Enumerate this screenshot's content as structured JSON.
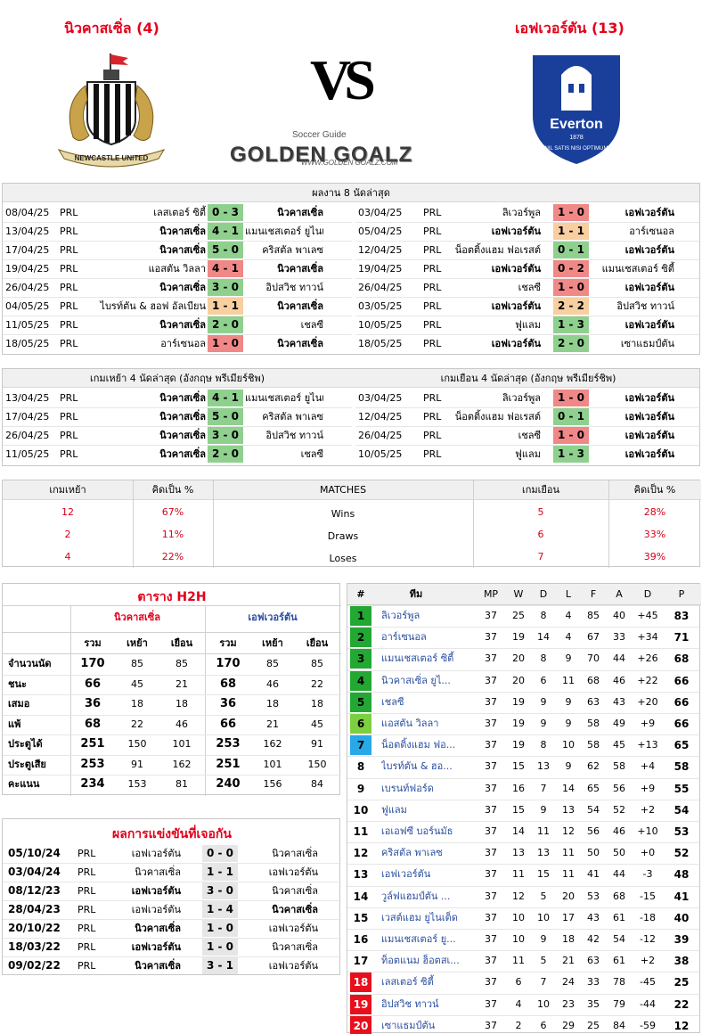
{
  "header": {
    "home_title": "นิวคาสเซิ่ล (4)",
    "away_title": "เอฟเวอร์ตัน (13)",
    "vs_text": "VS",
    "brand_small": "Soccer Guide",
    "brand_main": "GOLDEN GOALZ",
    "brand_url": "WWW.GOLDEN GOALZ.COM",
    "home_crest_text": "NEWCASTLE UNITED",
    "away_crest_name": "Everton",
    "away_crest_year": "1878",
    "away_crest_motto": "NIL SATIS NISI OPTIMUM"
  },
  "last8": {
    "title": "ผลงาน 8 นัดล่าสุด",
    "home": [
      {
        "date": "08/04/25",
        "lg": "PRL",
        "h": "เลสเตอร์ ซิตี้",
        "s": "0 - 3",
        "a": "นิวคาสเซิ่ล",
        "r": "w",
        "hb": false,
        "ab": true
      },
      {
        "date": "13/04/25",
        "lg": "PRL",
        "h": "นิวคาสเซิ่ล",
        "s": "4 - 1",
        "a": "แมนเชสเตอร์ ยูไนเต็ด",
        "r": "w",
        "hb": true,
        "ab": false
      },
      {
        "date": "17/04/25",
        "lg": "PRL",
        "h": "นิวคาสเซิ่ล",
        "s": "5 - 0",
        "a": "คริสตัล พาเลซ",
        "r": "w",
        "hb": true,
        "ab": false
      },
      {
        "date": "19/04/25",
        "lg": "PRL",
        "h": "แอสตัน วิลลา",
        "s": "4 - 1",
        "a": "นิวคาสเซิ่ล",
        "r": "l",
        "hb": false,
        "ab": true
      },
      {
        "date": "26/04/25",
        "lg": "PRL",
        "h": "นิวคาสเซิ่ล",
        "s": "3 - 0",
        "a": "อิปสวิช ทาวน์",
        "r": "w",
        "hb": true,
        "ab": false
      },
      {
        "date": "04/05/25",
        "lg": "PRL",
        "h": "ไบรท์ตัน & ฮอฟ อัลเบียน",
        "s": "1 - 1",
        "a": "นิวคาสเซิ่ล",
        "r": "d",
        "hb": false,
        "ab": true
      },
      {
        "date": "11/05/25",
        "lg": "PRL",
        "h": "นิวคาสเซิ่ล",
        "s": "2 - 0",
        "a": "เชลซี",
        "r": "w",
        "hb": true,
        "ab": false
      },
      {
        "date": "18/05/25",
        "lg": "PRL",
        "h": "อาร์เซนอล",
        "s": "1 - 0",
        "a": "นิวคาสเซิ่ล",
        "r": "l",
        "hb": false,
        "ab": true
      }
    ],
    "away": [
      {
        "date": "03/04/25",
        "lg": "PRL",
        "h": "ลิเวอร์พูล",
        "s": "1 - 0",
        "a": "เอฟเวอร์ตัน",
        "r": "l",
        "hb": false,
        "ab": true
      },
      {
        "date": "05/04/25",
        "lg": "PRL",
        "h": "เอฟเวอร์ตัน",
        "s": "1 - 1",
        "a": "อาร์เซนอล",
        "r": "d",
        "hb": true,
        "ab": false
      },
      {
        "date": "12/04/25",
        "lg": "PRL",
        "h": "น็อตติ้งแฮม ฟอเรสต์",
        "s": "0 - 1",
        "a": "เอฟเวอร์ตัน",
        "r": "w",
        "hb": false,
        "ab": true
      },
      {
        "date": "19/04/25",
        "lg": "PRL",
        "h": "เอฟเวอร์ตัน",
        "s": "0 - 2",
        "a": "แมนเชสเตอร์ ซิตี้",
        "r": "l",
        "hb": true,
        "ab": false
      },
      {
        "date": "26/04/25",
        "lg": "PRL",
        "h": "เชลซี",
        "s": "1 - 0",
        "a": "เอฟเวอร์ตัน",
        "r": "l",
        "hb": false,
        "ab": true
      },
      {
        "date": "03/05/25",
        "lg": "PRL",
        "h": "เอฟเวอร์ตัน",
        "s": "2 - 2",
        "a": "อิปสวิช ทาวน์",
        "r": "d",
        "hb": true,
        "ab": false
      },
      {
        "date": "10/05/25",
        "lg": "PRL",
        "h": "ฟูแลม",
        "s": "1 - 3",
        "a": "เอฟเวอร์ตัน",
        "r": "w",
        "hb": false,
        "ab": true
      },
      {
        "date": "18/05/25",
        "lg": "PRL",
        "h": "เอฟเวอร์ตัน",
        "s": "2 - 0",
        "a": "เซาแธมป์ตัน",
        "r": "w",
        "hb": true,
        "ab": false
      }
    ]
  },
  "last4": {
    "home_title": "เกมเหย้า 4 นัดล่าสุด (อังกฤษ พรีเมียร์ชิพ)",
    "away_title": "เกมเยือน 4 นัดล่าสุด (อังกฤษ พรีเมียร์ชิพ)",
    "home": [
      {
        "date": "13/04/25",
        "lg": "PRL",
        "h": "นิวคาสเซิ่ล",
        "s": "4 - 1",
        "a": "แมนเชสเตอร์ ยูไนเต็ด",
        "r": "w",
        "hb": true,
        "ab": false
      },
      {
        "date": "17/04/25",
        "lg": "PRL",
        "h": "นิวคาสเซิ่ล",
        "s": "5 - 0",
        "a": "คริสตัล พาเลซ",
        "r": "w",
        "hb": true,
        "ab": false
      },
      {
        "date": "26/04/25",
        "lg": "PRL",
        "h": "นิวคาสเซิ่ล",
        "s": "3 - 0",
        "a": "อิปสวิช ทาวน์",
        "r": "w",
        "hb": true,
        "ab": false
      },
      {
        "date": "11/05/25",
        "lg": "PRL",
        "h": "นิวคาสเซิ่ล",
        "s": "2 - 0",
        "a": "เชลซี",
        "r": "w",
        "hb": true,
        "ab": false
      }
    ],
    "away": [
      {
        "date": "03/04/25",
        "lg": "PRL",
        "h": "ลิเวอร์พูล",
        "s": "1 - 0",
        "a": "เอฟเวอร์ตัน",
        "r": "l",
        "hb": false,
        "ab": true
      },
      {
        "date": "12/04/25",
        "lg": "PRL",
        "h": "น็อตติ้งแฮม ฟอเรสต์",
        "s": "0 - 1",
        "a": "เอฟเวอร์ตัน",
        "r": "w",
        "hb": false,
        "ab": true
      },
      {
        "date": "26/04/25",
        "lg": "PRL",
        "h": "เชลซี",
        "s": "1 - 0",
        "a": "เอฟเวอร์ตัน",
        "r": "l",
        "hb": false,
        "ab": true
      },
      {
        "date": "10/05/25",
        "lg": "PRL",
        "h": "ฟูแลม",
        "s": "1 - 3",
        "a": "เอฟเวอร์ตัน",
        "r": "w",
        "hb": false,
        "ab": true
      }
    ]
  },
  "stats": {
    "headers": [
      "เกมเหย้า",
      "คิดเป็น %",
      "MATCHES",
      "เกมเยือน",
      "คิดเป็น %"
    ],
    "rows": [
      {
        "hv": "12",
        "hp": "67%",
        "label": "Wins",
        "av": "5",
        "ap": "28%"
      },
      {
        "hv": "2",
        "hp": "11%",
        "label": "Draws",
        "av": "6",
        "ap": "33%"
      },
      {
        "hv": "4",
        "hp": "22%",
        "label": "Loses",
        "av": "7",
        "ap": "39%"
      }
    ]
  },
  "h2h": {
    "title": "ตาราง H2H",
    "home": "นิวคาสเซิ่ล",
    "away": "เอฟเวอร์ตัน",
    "cols": [
      "รวม",
      "เหย้า",
      "เยือน",
      "รวม",
      "เหย้า",
      "เยือน"
    ],
    "rows": [
      {
        "label": "จำนวนนัด",
        "v": [
          "170",
          "85",
          "85",
          "170",
          "85",
          "85"
        ]
      },
      {
        "label": "ชนะ",
        "v": [
          "66",
          "45",
          "21",
          "68",
          "46",
          "22"
        ]
      },
      {
        "label": "เสมอ",
        "v": [
          "36",
          "18",
          "18",
          "36",
          "18",
          "18"
        ]
      },
      {
        "label": "แพ้",
        "v": [
          "68",
          "22",
          "46",
          "66",
          "21",
          "45"
        ]
      },
      {
        "label": "ประตูได้",
        "v": [
          "251",
          "150",
          "101",
          "253",
          "162",
          "91"
        ]
      },
      {
        "label": "ประตูเสีย",
        "v": [
          "253",
          "91",
          "162",
          "251",
          "101",
          "150"
        ]
      },
      {
        "label": "คะแนน",
        "v": [
          "234",
          "153",
          "81",
          "240",
          "156",
          "84"
        ]
      }
    ]
  },
  "meetings": {
    "title": "ผลการแข่งขันที่เจอกัน",
    "rows": [
      {
        "date": "05/10/24",
        "lg": "PRL",
        "h": "เอฟเวอร์ตัน",
        "s": "0 - 0",
        "a": "นิวคาสเซิ่ล",
        "hb": false,
        "ab": false
      },
      {
        "date": "03/04/24",
        "lg": "PRL",
        "h": "นิวคาสเซิ่ล",
        "s": "1 - 1",
        "a": "เอฟเวอร์ตัน",
        "hb": false,
        "ab": false
      },
      {
        "date": "08/12/23",
        "lg": "PRL",
        "h": "เอฟเวอร์ตัน",
        "s": "3 - 0",
        "a": "นิวคาสเซิ่ล",
        "hb": true,
        "ab": false
      },
      {
        "date": "28/04/23",
        "lg": "PRL",
        "h": "เอฟเวอร์ตัน",
        "s": "1 - 4",
        "a": "นิวคาสเซิ่ล",
        "hb": false,
        "ab": true
      },
      {
        "date": "20/10/22",
        "lg": "PRL",
        "h": "นิวคาสเซิ่ล",
        "s": "1 - 0",
        "a": "เอฟเวอร์ตัน",
        "hb": true,
        "ab": false
      },
      {
        "date": "18/03/22",
        "lg": "PRL",
        "h": "เอฟเวอร์ตัน",
        "s": "1 - 0",
        "a": "นิวคาสเซิ่ล",
        "hb": true,
        "ab": false
      },
      {
        "date": "09/02/22",
        "lg": "PRL",
        "h": "นิวคาสเซิ่ล",
        "s": "3 - 1",
        "a": "เอฟเวอร์ตัน",
        "hb": true,
        "ab": false
      }
    ]
  },
  "league": {
    "headers": [
      "#",
      "ทีม",
      "MP",
      "W",
      "D",
      "L",
      "F",
      "A",
      "D",
      "P"
    ],
    "rows": [
      {
        "pos": "1",
        "team": "ลิเวอร์พูล",
        "mp": "37",
        "w": "25",
        "d": "8",
        "l": "4",
        "f": "85",
        "a": "40",
        "gd": "+45",
        "p": "83",
        "col": "#22a833"
      },
      {
        "pos": "2",
        "team": "อาร์เซนอล",
        "mp": "37",
        "w": "19",
        "d": "14",
        "l": "4",
        "f": "67",
        "a": "33",
        "gd": "+34",
        "p": "71",
        "col": "#22a833"
      },
      {
        "pos": "3",
        "team": "แมนเชสเตอร์ ซิตี้",
        "mp": "37",
        "w": "20",
        "d": "8",
        "l": "9",
        "f": "70",
        "a": "44",
        "gd": "+26",
        "p": "68",
        "col": "#22a833"
      },
      {
        "pos": "4",
        "team": "นิวคาสเซิ่ล ยูไ...",
        "mp": "37",
        "w": "20",
        "d": "6",
        "l": "11",
        "f": "68",
        "a": "46",
        "gd": "+22",
        "p": "66",
        "col": "#22a833"
      },
      {
        "pos": "5",
        "team": "เชลซี",
        "mp": "37",
        "w": "19",
        "d": "9",
        "l": "9",
        "f": "63",
        "a": "43",
        "gd": "+20",
        "p": "66",
        "col": "#22a833"
      },
      {
        "pos": "6",
        "team": "แอสตัน วิลลา",
        "mp": "37",
        "w": "19",
        "d": "9",
        "l": "9",
        "f": "58",
        "a": "49",
        "gd": "+9",
        "p": "66",
        "col": "#7ccf3e"
      },
      {
        "pos": "7",
        "team": "น็อตติ้งแฮม ฟอ...",
        "mp": "37",
        "w": "19",
        "d": "8",
        "l": "10",
        "f": "58",
        "a": "45",
        "gd": "+13",
        "p": "65",
        "col": "#29a8e8"
      },
      {
        "pos": "8",
        "team": "ไบรท์ตัน & ฮอ...",
        "mp": "37",
        "w": "15",
        "d": "13",
        "l": "9",
        "f": "62",
        "a": "58",
        "gd": "+4",
        "p": "58",
        "col": ""
      },
      {
        "pos": "9",
        "team": "เบรนท์ฟอร์ด",
        "mp": "37",
        "w": "16",
        "d": "7",
        "l": "14",
        "f": "65",
        "a": "56",
        "gd": "+9",
        "p": "55",
        "col": ""
      },
      {
        "pos": "10",
        "team": "ฟูแลม",
        "mp": "37",
        "w": "15",
        "d": "9",
        "l": "13",
        "f": "54",
        "a": "52",
        "gd": "+2",
        "p": "54",
        "col": ""
      },
      {
        "pos": "11",
        "team": "เอเอฟซี บอร์นมัธ",
        "mp": "37",
        "w": "14",
        "d": "11",
        "l": "12",
        "f": "56",
        "a": "46",
        "gd": "+10",
        "p": "53",
        "col": ""
      },
      {
        "pos": "12",
        "team": "คริสตัล พาเลซ",
        "mp": "37",
        "w": "13",
        "d": "13",
        "l": "11",
        "f": "50",
        "a": "50",
        "gd": "+0",
        "p": "52",
        "col": ""
      },
      {
        "pos": "13",
        "team": "เอฟเวอร์ตัน",
        "mp": "37",
        "w": "11",
        "d": "15",
        "l": "11",
        "f": "41",
        "a": "44",
        "gd": "-3",
        "p": "48",
        "col": ""
      },
      {
        "pos": "14",
        "team": "วูล์ฟแฮมป์ตัน ...",
        "mp": "37",
        "w": "12",
        "d": "5",
        "l": "20",
        "f": "53",
        "a": "68",
        "gd": "-15",
        "p": "41",
        "col": ""
      },
      {
        "pos": "15",
        "team": "เวสต์แฮม ยูไนเต็ด",
        "mp": "37",
        "w": "10",
        "d": "10",
        "l": "17",
        "f": "43",
        "a": "61",
        "gd": "-18",
        "p": "40",
        "col": ""
      },
      {
        "pos": "16",
        "team": "แมนเชสเตอร์ ยู...",
        "mp": "37",
        "w": "10",
        "d": "9",
        "l": "18",
        "f": "42",
        "a": "54",
        "gd": "-12",
        "p": "39",
        "col": ""
      },
      {
        "pos": "17",
        "team": "ท็อตแนม ฮ็อตสเ...",
        "mp": "37",
        "w": "11",
        "d": "5",
        "l": "21",
        "f": "63",
        "a": "61",
        "gd": "+2",
        "p": "38",
        "col": ""
      },
      {
        "pos": "18",
        "team": "เลสเตอร์ ซิตี้",
        "mp": "37",
        "w": "6",
        "d": "7",
        "l": "24",
        "f": "33",
        "a": "78",
        "gd": "-45",
        "p": "25",
        "col": "#e8101c"
      },
      {
        "pos": "19",
        "team": "อิปสวิช ทาวน์",
        "mp": "37",
        "w": "4",
        "d": "10",
        "l": "23",
        "f": "35",
        "a": "79",
        "gd": "-44",
        "p": "22",
        "col": "#e8101c"
      },
      {
        "pos": "20",
        "team": "เซาแธมป์ตัน",
        "mp": "37",
        "w": "2",
        "d": "6",
        "l": "29",
        "f": "25",
        "a": "84",
        "gd": "-59",
        "p": "12",
        "col": "#e8101c"
      }
    ]
  },
  "colors": {
    "win": "#8fd08f",
    "draw": "#f7cfa0",
    "loss": "#f08888",
    "accent": "#e3001b",
    "link": "#2a4fa0"
  }
}
